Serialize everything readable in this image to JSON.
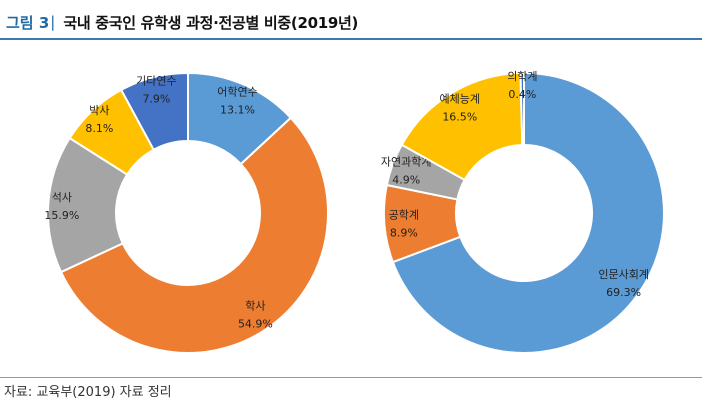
{
  "figure": {
    "label": "그림 3",
    "separator": "|",
    "title": "국내 중국인 유학생 과정·전공별 비중(2019년)"
  },
  "source": "자료: 교육부(2019) 자료 정리",
  "colors": {
    "accent": "#1f6aa5",
    "blue": "#5b9bd5",
    "orange": "#ed7d31",
    "gray": "#a5a5a5",
    "yellow": "#ffc000",
    "navy": "#4472c4"
  },
  "chart_data": [
    {
      "type": "pie",
      "donut": true,
      "title": "",
      "slices": [
        {
          "label": "어학연수",
          "value": 13.1,
          "value_label": "13.1%",
          "color": "#5b9bd5"
        },
        {
          "label": "학사",
          "value": 54.9,
          "value_label": "54.9%",
          "color": "#ed7d31"
        },
        {
          "label": "석사",
          "value": 15.9,
          "value_label": "15.9%",
          "color": "#a5a5a5"
        },
        {
          "label": "박사",
          "value": 8.1,
          "value_label": "8.1%",
          "color": "#ffc000"
        },
        {
          "label": "기타연수",
          "value": 7.9,
          "value_label": "7.9%",
          "color": "#4472c4"
        }
      ]
    },
    {
      "type": "pie",
      "donut": true,
      "title": "",
      "slices": [
        {
          "label": "인문사회계",
          "value": 69.3,
          "value_label": "69.3%",
          "color": "#5b9bd5"
        },
        {
          "label": "공학계",
          "value": 8.9,
          "value_label": "8.9%",
          "color": "#ed7d31"
        },
        {
          "label": "자연과학계",
          "value": 4.9,
          "value_label": "4.9%",
          "color": "#a5a5a5"
        },
        {
          "label": "예체능계",
          "value": 16.5,
          "value_label": "16.5%",
          "color": "#ffc000"
        },
        {
          "label": "의학계",
          "value": 0.4,
          "value_label": "0.4%",
          "color": "#4472c4"
        }
      ]
    }
  ]
}
